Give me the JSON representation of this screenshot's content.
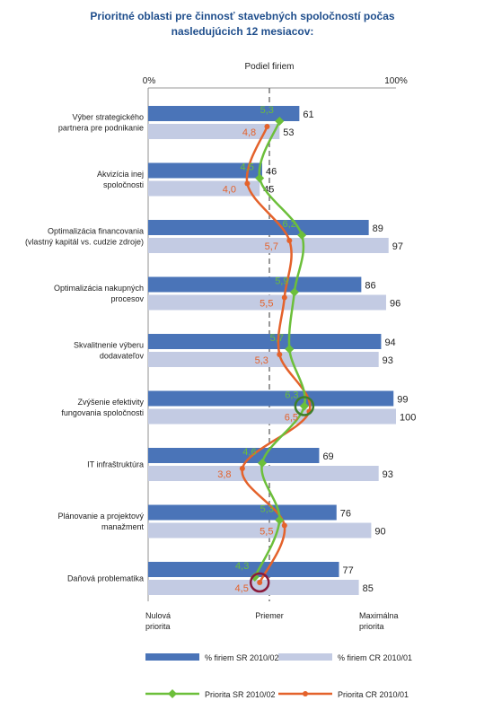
{
  "chart_data": {
    "type": "bar",
    "title": [
      "Prioritné oblasti pre činnosť stavebných spoločností počas",
      "nasledujúcich 12 mesiacov:"
    ],
    "xlabel": "Podiel firiem",
    "axis_left_label": "0%",
    "axis_right_label": "100%",
    "xlim": [
      0,
      100
    ],
    "categories": [
      [
        "Výber strategického",
        "partnera pre podnikanie"
      ],
      [
        "Akvizícia inej",
        "spoločnosti"
      ],
      [
        "Optimalizácia financovania",
        "(vlastný kapitál vs. cudzie zdroje)"
      ],
      [
        "Optimalizácia nakupných",
        "procesov"
      ],
      [
        "Skvalitnenie výberu",
        "dodavateľov"
      ],
      [
        "Zvýšenie efektivity",
        "fungovania spoločnosti"
      ],
      [
        "IT infraštruktúra"
      ],
      [
        "Plánovanie a projektový",
        "manažment"
      ],
      [
        "Daňová problematika"
      ]
    ],
    "series": [
      {
        "name": "% firiem SR 2010/02",
        "color": "#4a74b8",
        "values": [
          61,
          46,
          89,
          86,
          94,
          99,
          69,
          76,
          77
        ]
      },
      {
        "name": "% firiem CR 2010/01",
        "color": "#c3cbe3",
        "values": [
          53,
          45,
          97,
          96,
          93,
          100,
          93,
          90,
          85
        ]
      }
    ],
    "priority_series": [
      {
        "name": "Priorita SR 2010/02",
        "color": "#6cbf3a",
        "values": [
          5.3,
          4.5,
          6.2,
          5.9,
          5.7,
          6.3,
          4.6,
          5.3,
          4.3
        ],
        "value_labels": [
          "5,3",
          "4,5",
          "6,2",
          "5,9",
          "5,7",
          "6,3",
          "4,6",
          "5,3",
          "4,3"
        ]
      },
      {
        "name": "Priorita CR 2010/01",
        "color": "#e4622b",
        "values": [
          4.8,
          4.0,
          5.7,
          5.5,
          5.3,
          6.5,
          3.8,
          5.5,
          4.5
        ],
        "value_labels": [
          "4,8",
          "4,0",
          "5,7",
          "5,5",
          "5,3",
          "6,5",
          "3,8",
          "5,5",
          "4,5"
        ]
      }
    ],
    "priority_scale_labels": [
      [
        "Nulová",
        "priorita"
      ],
      [
        "Priemer"
      ],
      [
        "Maximálna",
        "priorita"
      ]
    ],
    "highlighted": [
      {
        "category_index": 5,
        "series": "Priorita SR 2010/02",
        "color": "#3f7f2a"
      },
      {
        "category_index": 8,
        "series": "Priorita CR 2010/01",
        "color": "#8b1a3a"
      }
    ],
    "legend_position": "bottom",
    "grid": false
  }
}
